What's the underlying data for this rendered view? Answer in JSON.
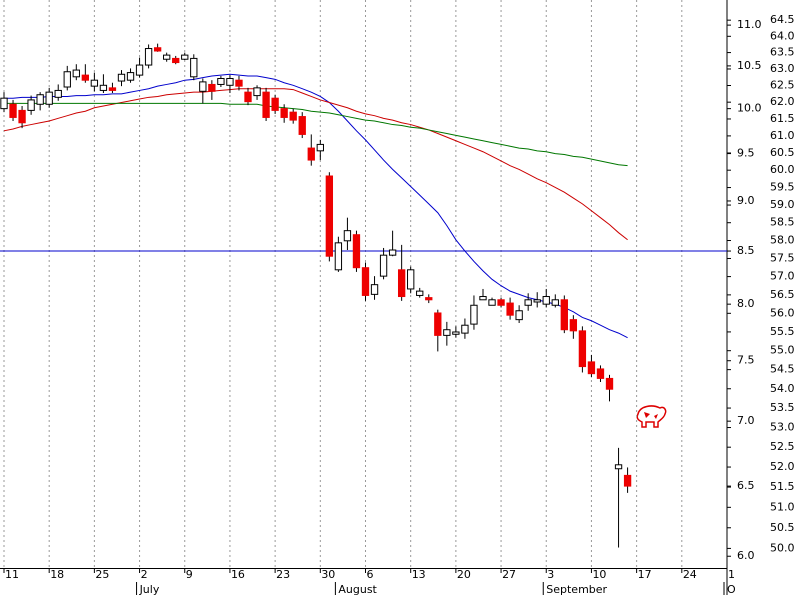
{
  "chart_data": {
    "type": "candlestick",
    "log_scale": true,
    "categories": [
      "11",
      null,
      null,
      null,
      null,
      "18",
      null,
      null,
      null,
      null,
      "25",
      null,
      null,
      null,
      null,
      "2",
      null,
      null,
      null,
      null,
      "9",
      null,
      null,
      null,
      null,
      "16",
      null,
      null,
      null,
      null,
      "23",
      null,
      null,
      null,
      null,
      "30",
      null,
      null,
      null,
      null,
      "6",
      null,
      null,
      null,
      null,
      "13",
      null,
      null,
      null,
      null,
      "20",
      null,
      null,
      null,
      null,
      "27",
      null,
      null,
      null,
      null,
      "3",
      null,
      null,
      null,
      null,
      "10",
      null,
      null,
      null,
      null,
      "17",
      null,
      null,
      null,
      null,
      "24",
      null,
      null,
      null,
      null,
      "1"
    ],
    "month_labels": [
      null,
      null,
      null,
      null,
      null,
      null,
      null,
      null,
      null,
      null,
      null,
      null,
      null,
      null,
      null,
      "July",
      null,
      null,
      null,
      null,
      null,
      null,
      null,
      null,
      null,
      null,
      null,
      null,
      null,
      null,
      null,
      null,
      null,
      null,
      null,
      null,
      null,
      "August",
      null,
      null,
      null,
      null,
      null,
      null,
      null,
      null,
      null,
      null,
      null,
      null,
      null,
      null,
      null,
      null,
      null,
      null,
      null,
      null,
      null,
      null,
      "September",
      null,
      null,
      null,
      null,
      null,
      null,
      null,
      null,
      null,
      null,
      null,
      null,
      null,
      null,
      null,
      null,
      null,
      null,
      null,
      "O"
    ],
    "open": [
      10.0,
      10.05,
      9.98,
      9.98,
      10.05,
      10.05,
      10.13,
      10.25,
      10.37,
      10.39,
      10.26,
      10.21,
      10.24,
      10.32,
      10.33,
      10.39,
      10.51,
      10.72,
      10.58,
      10.59,
      10.58,
      10.37,
      10.2,
      10.28,
      10.28,
      10.27,
      10.33,
      10.19,
      10.15,
      10.19,
      10.12,
      10.0,
      9.96,
      9.91,
      9.56,
      9.53,
      9.26,
      8.32,
      8.6,
      8.66,
      8.34,
      8.09,
      8.26,
      8.46,
      8.32,
      8.14,
      8.08,
      8.06,
      7.92,
      7.72,
      7.73,
      7.74,
      7.82,
      8.04,
      7.99,
      8.04,
      8.01,
      7.86,
      7.99,
      8.02,
      8.0,
      7.99,
      8.04,
      7.86,
      7.76,
      7.49,
      7.43,
      7.35,
      6.63,
      6.58,
      null,
      null,
      null,
      null,
      null,
      null,
      null,
      null,
      null,
      null,
      null
    ],
    "high": [
      10.19,
      10.1,
      10.03,
      10.15,
      10.19,
      10.24,
      10.28,
      10.5,
      10.52,
      10.52,
      10.42,
      10.4,
      10.3,
      10.45,
      10.47,
      10.6,
      10.76,
      10.77,
      10.66,
      10.62,
      10.66,
      10.64,
      10.35,
      10.33,
      10.38,
      10.39,
      10.38,
      10.24,
      10.27,
      10.24,
      10.16,
      10.05,
      10.0,
      9.96,
      9.71,
      9.65,
      9.3,
      8.64,
      8.83,
      8.7,
      8.39,
      8.26,
      8.53,
      8.7,
      8.56,
      8.35,
      8.15,
      8.09,
      7.95,
      7.84,
      7.8,
      7.87,
      8.08,
      8.14,
      8.06,
      8.06,
      8.06,
      7.99,
      8.1,
      8.11,
      8.14,
      8.09,
      8.08,
      7.9,
      7.8,
      7.55,
      7.46,
      7.38,
      6.79,
      6.64,
      null,
      null,
      null,
      null,
      null,
      null,
      null,
      null,
      null,
      null,
      null
    ],
    "low": [
      9.96,
      9.86,
      9.78,
      9.93,
      9.98,
      10.01,
      10.09,
      10.21,
      10.33,
      10.3,
      10.2,
      10.18,
      10.18,
      10.26,
      10.3,
      10.36,
      10.47,
      10.67,
      10.55,
      10.52,
      10.57,
      10.33,
      10.06,
      10.1,
      10.25,
      10.18,
      10.21,
      10.04,
      10.1,
      9.86,
      9.94,
      9.84,
      9.83,
      9.67,
      9.37,
      9.43,
      8.4,
      8.3,
      8.51,
      8.3,
      8.03,
      8.04,
      8.23,
      8.45,
      8.03,
      8.1,
      8.06,
      8.01,
      7.58,
      7.63,
      7.7,
      7.69,
      7.77,
      8.04,
      7.99,
      7.97,
      7.86,
      7.83,
      7.94,
      7.97,
      7.97,
      7.97,
      7.74,
      7.69,
      7.4,
      7.36,
      7.32,
      7.16,
      6.06,
      6.45,
      null,
      null,
      null,
      null,
      null,
      null,
      null,
      null,
      null,
      null,
      null
    ],
    "close": [
      10.12,
      9.9,
      9.84,
      10.1,
      10.16,
      10.19,
      10.21,
      10.43,
      10.45,
      10.33,
      10.33,
      10.27,
      10.21,
      10.4,
      10.42,
      10.51,
      10.71,
      10.68,
      10.63,
      10.54,
      10.63,
      10.59,
      10.31,
      10.2,
      10.35,
      10.35,
      10.26,
      10.08,
      10.24,
      9.9,
      9.98,
      9.9,
      9.87,
      9.71,
      9.43,
      9.6,
      8.45,
      8.58,
      8.7,
      8.34,
      8.08,
      8.18,
      8.46,
      8.51,
      8.07,
      8.32,
      8.12,
      8.04,
      7.72,
      7.77,
      7.75,
      7.81,
      7.99,
      8.07,
      8.04,
      7.99,
      7.9,
      7.94,
      8.04,
      8.04,
      8.07,
      8.04,
      7.77,
      7.76,
      7.45,
      7.39,
      7.35,
      7.26,
      6.66,
      6.5,
      null,
      null,
      null,
      null,
      null,
      null,
      null,
      null,
      null,
      null,
      null
    ],
    "up_color": "#ffffff",
    "down_color": "#ee0000",
    "lines": [
      {
        "color": "#0000cc",
        "values": [
          10.12,
          10.12,
          10.13,
          10.13,
          10.13,
          10.14,
          10.14,
          10.14,
          10.15,
          10.15,
          10.16,
          10.16,
          10.17,
          10.17,
          10.19,
          10.21,
          10.23,
          10.26,
          10.28,
          10.3,
          10.33,
          10.34,
          10.36,
          10.38,
          10.39,
          10.4,
          10.39,
          10.38,
          10.38,
          10.36,
          10.34,
          10.3,
          10.27,
          10.23,
          10.19,
          10.14,
          10.07,
          9.97,
          9.86,
          9.75,
          9.65,
          9.54,
          9.43,
          9.33,
          9.24,
          9.15,
          9.06,
          8.97,
          8.88,
          8.75,
          8.61,
          8.5,
          8.4,
          8.31,
          8.23,
          8.17,
          8.12,
          8.09,
          8.06,
          8.04,
          8.02,
          8.0,
          7.97,
          7.93,
          7.88,
          7.85,
          7.81,
          7.77,
          7.74,
          7.7,
          null,
          null,
          null,
          null,
          null,
          null,
          null,
          null,
          null,
          null,
          null
        ]
      },
      {
        "color": "#cc0000",
        "values": [
          9.75,
          9.77,
          9.8,
          9.82,
          9.84,
          9.86,
          9.89,
          9.92,
          9.95,
          9.97,
          10.01,
          10.03,
          10.05,
          10.07,
          10.09,
          10.11,
          10.13,
          10.14,
          10.16,
          10.17,
          10.18,
          10.19,
          10.19,
          10.2,
          10.21,
          10.22,
          10.23,
          10.23,
          10.23,
          10.23,
          10.23,
          10.23,
          10.22,
          10.18,
          10.14,
          10.1,
          10.07,
          10.04,
          10.01,
          9.97,
          9.94,
          9.92,
          9.89,
          9.87,
          9.84,
          9.82,
          9.79,
          9.76,
          9.72,
          9.68,
          9.64,
          9.6,
          9.56,
          9.52,
          9.47,
          9.42,
          9.37,
          9.33,
          9.28,
          9.23,
          9.19,
          9.14,
          9.09,
          9.03,
          8.97,
          8.9,
          8.83,
          8.76,
          8.68,
          8.61,
          null,
          null,
          null,
          null,
          null,
          null,
          null,
          null,
          null,
          null,
          null
        ]
      },
      {
        "color": "#007700",
        "values": [
          10.06,
          10.06,
          10.06,
          10.06,
          10.06,
          10.06,
          10.06,
          10.06,
          10.06,
          10.06,
          10.06,
          10.06,
          10.06,
          10.06,
          10.06,
          10.06,
          10.06,
          10.06,
          10.06,
          10.06,
          10.06,
          10.06,
          10.06,
          10.06,
          10.06,
          10.05,
          10.05,
          10.05,
          10.05,
          10.03,
          10.02,
          10.01,
          10.0,
          9.99,
          9.97,
          9.96,
          9.95,
          9.93,
          9.91,
          9.89,
          9.87,
          9.86,
          9.84,
          9.82,
          9.81,
          9.79,
          9.78,
          9.76,
          9.74,
          9.72,
          9.7,
          9.68,
          9.66,
          9.64,
          9.62,
          9.6,
          9.58,
          9.56,
          9.55,
          9.53,
          9.52,
          9.5,
          9.49,
          9.47,
          9.46,
          9.44,
          9.42,
          9.4,
          9.38,
          9.37,
          null,
          null,
          null,
          null,
          null,
          null,
          null,
          null,
          null,
          null,
          null
        ]
      }
    ],
    "hlines": [
      {
        "value": 8.5,
        "color": "#0000cc"
      }
    ],
    "ylim": [
      5.92,
      11.32
    ],
    "yticks": [
      {
        "value": 11,
        "label": "11.0"
      },
      10.5,
      {
        "value": 10,
        "label": "10.0"
      },
      9.5,
      {
        "value": 9,
        "label": "9.0"
      },
      8.5,
      {
        "value": 8,
        "label": "8.0"
      },
      7.5,
      {
        "value": 7,
        "label": "7.0"
      },
      6.5,
      {
        "value": 6,
        "label": "6.0"
      }
    ],
    "y2lim": [
      49.53,
      65.13
    ],
    "y2ticks": [
      64.5,
      {
        "value": 64,
        "label": "64.0"
      },
      63.5,
      {
        "value": 63,
        "label": "63.0"
      },
      62.5,
      {
        "value": 62,
        "label": "62.0"
      },
      61.5,
      {
        "value": 61,
        "label": "61.0"
      },
      60.5,
      {
        "value": 60,
        "label": "60.0"
      },
      59.5,
      {
        "value": 59,
        "label": "59.0"
      },
      58.5,
      {
        "value": 58,
        "label": "58.0"
      },
      57.5,
      {
        "value": 57,
        "label": "57.0"
      },
      56.5,
      {
        "value": 56,
        "label": "56.0"
      },
      55.5,
      {
        "value": 55,
        "label": "55.0"
      },
      54.5,
      {
        "value": 54,
        "label": "54.0"
      },
      53.5,
      {
        "value": 53,
        "label": "53.0"
      },
      52.5,
      {
        "value": 52,
        "label": "52.0"
      },
      51.5,
      {
        "value": 51,
        "label": "51.0"
      },
      50.5,
      {
        "value": 50,
        "label": "50.0"
      }
    ],
    "grid": true
  }
}
